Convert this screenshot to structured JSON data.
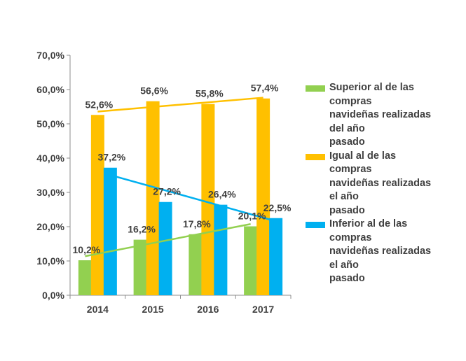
{
  "chart_data": {
    "type": "bar",
    "categories": [
      "2014",
      "2015",
      "2016",
      "2017"
    ],
    "ylim": [
      0,
      70
    ],
    "yticks": [
      "0,0%",
      "10,0%",
      "20,0%",
      "30,0%",
      "40,0%",
      "50,0%",
      "60,0%",
      "70,0%"
    ],
    "grid": false,
    "legend_position": "right",
    "series": [
      {
        "name": "Superior al de las compras navideñas realizadas del año pasado",
        "legend_lines": [
          "Superior al de las",
          "compras",
          "navideñas realizadas",
          "del año",
          "pasado"
        ],
        "color": "#92D050",
        "values": [
          10.2,
          16.2,
          17.8,
          20.1
        ],
        "labels": [
          "10,2%",
          "16,2%",
          "17,8%",
          "20,1%"
        ],
        "trendline": true
      },
      {
        "name": "Igual al de las compras navideñas realizadas el año pasado",
        "legend_lines": [
          "Igual al de las",
          "compras",
          "navideñas realizadas",
          "el año",
          "pasado"
        ],
        "color": "#FFC000",
        "values": [
          52.6,
          56.6,
          55.8,
          57.4
        ],
        "labels": [
          "52,6%",
          "56,6%",
          "55,8%",
          "57,4%"
        ],
        "trendline": true
      },
      {
        "name": "Inferior al de las compras navideñas realizadas el año pasado",
        "legend_lines": [
          "Inferior al de las",
          "compras",
          "navideñas realizadas",
          "el año",
          "pasado"
        ],
        "color": "#00B0F0",
        "values": [
          37.2,
          27.2,
          26.4,
          22.5
        ],
        "labels": [
          "37,2%",
          "27,2%",
          "26,4%",
          "22,5%"
        ],
        "trendline": true
      }
    ]
  }
}
